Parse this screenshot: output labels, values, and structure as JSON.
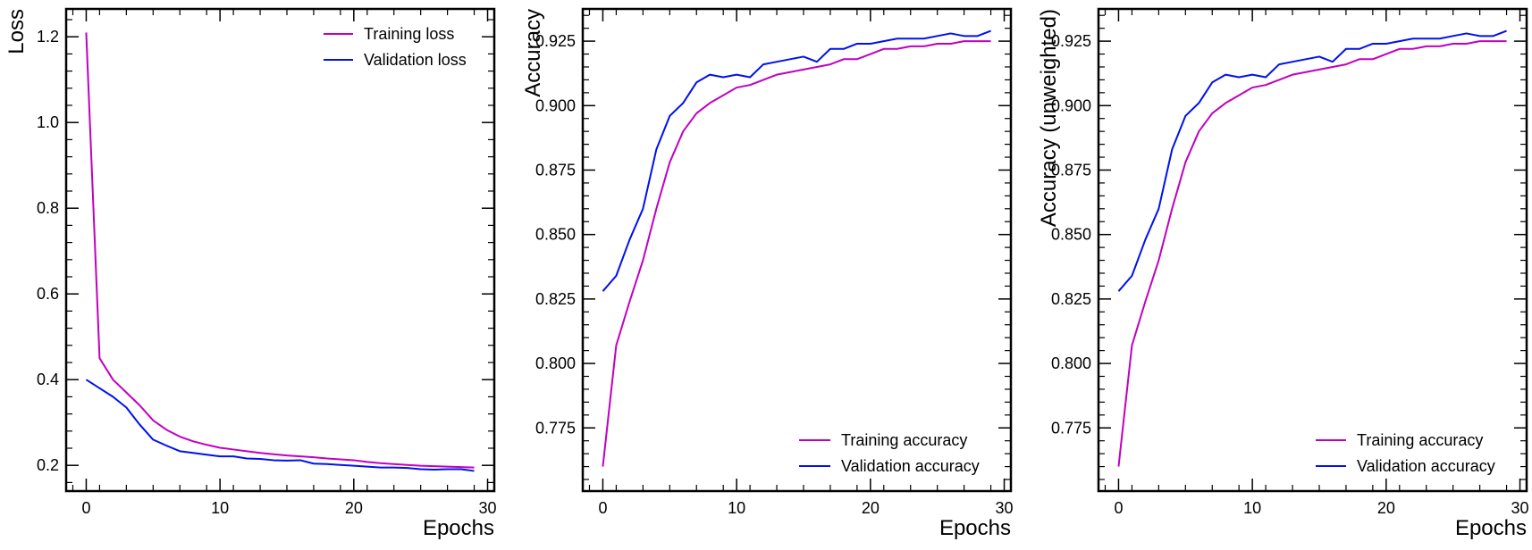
{
  "colors": {
    "training": "#c000c0",
    "validation": "#0010ee"
  },
  "chart_data": [
    {
      "type": "line",
      "xlabel": "Epochs",
      "ylabel": "Loss",
      "xlim": [
        -1.5,
        30.5
      ],
      "ylim": [
        0.14,
        1.265
      ],
      "xticks": [
        0,
        10,
        20,
        30
      ],
      "yticks": [
        0.2,
        0.4,
        0.6,
        0.8,
        1.0,
        1.2
      ],
      "ytick_labels": [
        "0.2",
        "0.4",
        "0.6",
        "0.8",
        "1.0",
        "1.2"
      ],
      "legend_position": "top-right",
      "x": [
        0,
        1,
        2,
        3,
        4,
        5,
        6,
        7,
        8,
        9,
        10,
        11,
        12,
        13,
        14,
        15,
        16,
        17,
        18,
        19,
        20,
        21,
        22,
        23,
        24,
        25,
        26,
        27,
        28,
        29
      ],
      "series": [
        {
          "name": "Training loss",
          "color": "training",
          "values": [
            1.21,
            0.45,
            0.4,
            0.37,
            0.34,
            0.305,
            0.283,
            0.267,
            0.256,
            0.248,
            0.241,
            0.237,
            0.233,
            0.229,
            0.226,
            0.223,
            0.221,
            0.219,
            0.216,
            0.214,
            0.212,
            0.208,
            0.205,
            0.203,
            0.201,
            0.199,
            0.198,
            0.197,
            0.196,
            0.195
          ]
        },
        {
          "name": "Validation loss",
          "color": "validation",
          "values": [
            0.4,
            0.38,
            0.36,
            0.335,
            0.295,
            0.26,
            0.246,
            0.233,
            0.229,
            0.225,
            0.221,
            0.221,
            0.216,
            0.215,
            0.212,
            0.211,
            0.212,
            0.204,
            0.203,
            0.201,
            0.199,
            0.197,
            0.195,
            0.195,
            0.194,
            0.191,
            0.19,
            0.191,
            0.191,
            0.187
          ]
        }
      ]
    },
    {
      "type": "line",
      "xlabel": "Epochs",
      "ylabel": "Accuracy",
      "xlim": [
        -1.5,
        30.5
      ],
      "ylim": [
        0.7505,
        0.9375
      ],
      "xticks": [
        0,
        10,
        20,
        30
      ],
      "yticks": [
        0.775,
        0.8,
        0.825,
        0.85,
        0.875,
        0.9,
        0.925
      ],
      "ytick_labels": [
        "0.775",
        "0.800",
        "0.825",
        "0.850",
        "0.875",
        "0.900",
        "0.925"
      ],
      "legend_position": "bottom-right",
      "x": [
        0,
        1,
        2,
        3,
        4,
        5,
        6,
        7,
        8,
        9,
        10,
        11,
        12,
        13,
        14,
        15,
        16,
        17,
        18,
        19,
        20,
        21,
        22,
        23,
        24,
        25,
        26,
        27,
        28,
        29
      ],
      "series": [
        {
          "name": "Training accuracy",
          "color": "training",
          "values": [
            0.76,
            0.807,
            0.824,
            0.84,
            0.86,
            0.878,
            0.89,
            0.897,
            0.901,
            0.904,
            0.907,
            0.908,
            0.91,
            0.912,
            0.913,
            0.914,
            0.915,
            0.916,
            0.918,
            0.918,
            0.92,
            0.922,
            0.922,
            0.923,
            0.923,
            0.924,
            0.924,
            0.925,
            0.925,
            0.925
          ]
        },
        {
          "name": "Validation accuracy",
          "color": "validation",
          "values": [
            0.828,
            0.834,
            0.848,
            0.86,
            0.883,
            0.896,
            0.901,
            0.909,
            0.912,
            0.911,
            0.912,
            0.911,
            0.916,
            0.917,
            0.918,
            0.919,
            0.917,
            0.922,
            0.922,
            0.924,
            0.924,
            0.925,
            0.926,
            0.926,
            0.926,
            0.927,
            0.928,
            0.927,
            0.927,
            0.929
          ]
        }
      ]
    },
    {
      "type": "line",
      "xlabel": "Epochs",
      "ylabel": "Accuracy (unweighted)",
      "xlim": [
        -1.5,
        30.5
      ],
      "ylim": [
        0.7505,
        0.9375
      ],
      "xticks": [
        0,
        10,
        20,
        30
      ],
      "yticks": [
        0.775,
        0.8,
        0.825,
        0.85,
        0.875,
        0.9,
        0.925
      ],
      "ytick_labels": [
        "0.775",
        "0.800",
        "0.825",
        "0.850",
        "0.875",
        "0.900",
        "0.925"
      ],
      "legend_position": "bottom-right",
      "x": [
        0,
        1,
        2,
        3,
        4,
        5,
        6,
        7,
        8,
        9,
        10,
        11,
        12,
        13,
        14,
        15,
        16,
        17,
        18,
        19,
        20,
        21,
        22,
        23,
        24,
        25,
        26,
        27,
        28,
        29
      ],
      "series": [
        {
          "name": "Training accuracy",
          "color": "training",
          "values": [
            0.76,
            0.807,
            0.824,
            0.84,
            0.86,
            0.878,
            0.89,
            0.897,
            0.901,
            0.904,
            0.907,
            0.908,
            0.91,
            0.912,
            0.913,
            0.914,
            0.915,
            0.916,
            0.918,
            0.918,
            0.92,
            0.922,
            0.922,
            0.923,
            0.923,
            0.924,
            0.924,
            0.925,
            0.925,
            0.925
          ]
        },
        {
          "name": "Validation accuracy",
          "color": "validation",
          "values": [
            0.828,
            0.834,
            0.848,
            0.86,
            0.883,
            0.896,
            0.901,
            0.909,
            0.912,
            0.911,
            0.912,
            0.911,
            0.916,
            0.917,
            0.918,
            0.919,
            0.917,
            0.922,
            0.922,
            0.924,
            0.924,
            0.925,
            0.926,
            0.926,
            0.926,
            0.927,
            0.928,
            0.927,
            0.927,
            0.929
          ]
        }
      ]
    }
  ]
}
